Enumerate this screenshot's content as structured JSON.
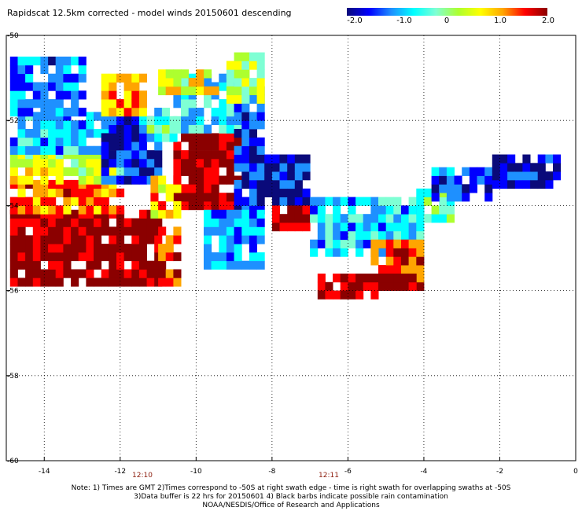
{
  "title": "Rapidscat 12.5km corrected - model winds 20150601 descending",
  "colorbar": {
    "ticks": [
      "-2.0",
      "-1.0",
      "0",
      "1.0",
      "2.0"
    ],
    "stops": [
      "#0a0a7a",
      "#0000ff",
      "#1e90ff",
      "#00ffff",
      "#7fffd4",
      "#adff2f",
      "#ffff00",
      "#ffa500",
      "#ff0000",
      "#8b0000"
    ]
  },
  "axes": {
    "x_ticks": [
      "-14",
      "-12",
      "-10",
      "-8",
      "-6",
      "-4",
      "-2",
      "0"
    ],
    "y_ticks": [
      "-50",
      "-52",
      "-54",
      "-56",
      "-58",
      "-60"
    ]
  },
  "time_labels": [
    "12:10",
    "12:11"
  ],
  "notes": [
    "Note: 1) Times are GMT 2)Times correspond to -50S at right swath edge - time is right swath for overlapping swaths at -50S",
    "3)Data buffer is 22 hrs for 20150601 4) Black barbs indicate possible rain contamination",
    "NOAA/NESDIS/Office of Research and Applications"
  ],
  "map_data": {
    "lon_range": [
      -15,
      0
    ],
    "lat_range": [
      -60,
      -50
    ],
    "regions": [
      {
        "lon": [
          -14.9,
          -11.0
        ],
        "lat": [
          -54.2,
          -55.9
        ],
        "v": 2.0
      },
      {
        "lon": [
          -11.0,
          -10.5
        ],
        "lat": [
          -54.5,
          -55.9
        ],
        "v": 1.5
      },
      {
        "lon": [
          -10.6,
          -9.0
        ],
        "lat": [
          -52.3,
          -54.1
        ],
        "v": 2.0
      },
      {
        "lon": [
          -14.9,
          -12.0
        ],
        "lat": [
          -53.5,
          -54.2
        ],
        "v": 1.2
      },
      {
        "lon": [
          -14.9,
          -11.5
        ],
        "lat": [
          -52.8,
          -53.5
        ],
        "v": 0.4
      },
      {
        "lon": [
          -14.9,
          -12.5
        ],
        "lat": [
          -51.9,
          -52.8
        ],
        "v": -0.8
      },
      {
        "lon": [
          -14.9,
          -13.0
        ],
        "lat": [
          -50.6,
          -51.9
        ],
        "v": -1.2
      },
      {
        "lon": [
          -12.5,
          -11.0
        ],
        "lat": [
          -52.0,
          -53.5
        ],
        "v": -1.6
      },
      {
        "lon": [
          -11.5,
          -10.6
        ],
        "lat": [
          -51.8,
          -52.5
        ],
        "v": -0.4
      },
      {
        "lon": [
          -10.6,
          -9.0
        ],
        "lat": [
          -51.0,
          -52.3
        ],
        "v": -0.6
      },
      {
        "lon": [
          -11.2,
          -10.5
        ],
        "lat": [
          -53.3,
          -54.3
        ],
        "v": 0.8
      },
      {
        "lon": [
          -9.0,
          -8.3
        ],
        "lat": [
          -51.2,
          -54.2
        ],
        "v": -1.5
      },
      {
        "lon": [
          -9.8,
          -8.4
        ],
        "lat": [
          -54.2,
          -55.5
        ],
        "v": -1.0
      },
      {
        "lon": [
          -8.2,
          -7.0
        ],
        "lat": [
          -52.8,
          -54.0
        ],
        "v": -1.8
      },
      {
        "lon": [
          -8.0,
          -7.0
        ],
        "lat": [
          -54.0,
          -54.6
        ],
        "v": 2.0
      },
      {
        "lon": [
          -7.0,
          -4.0
        ],
        "lat": [
          -53.9,
          -55.2
        ],
        "v": -0.8
      },
      {
        "lon": [
          -5.4,
          -4.0
        ],
        "lat": [
          -54.9,
          -56.0
        ],
        "v": 1.5
      },
      {
        "lon": [
          -6.8,
          -4.2
        ],
        "lat": [
          -55.6,
          -56.0
        ],
        "v": 2.0
      },
      {
        "lon": [
          -6.8,
          -5.3
        ],
        "lat": [
          -56.0,
          -56.2
        ],
        "v": 2.0
      },
      {
        "lon": [
          -4.2,
          -3.2
        ],
        "lat": [
          -53.6,
          -54.4
        ],
        "v": -0.2
      },
      {
        "lon": [
          -3.8,
          -2.2
        ],
        "lat": [
          -53.1,
          -53.9
        ],
        "v": -1.4
      },
      {
        "lon": [
          -2.2,
          -0.6
        ],
        "lat": [
          -52.9,
          -53.6
        ],
        "v": -1.8
      },
      {
        "lon": [
          -9.2,
          -8.4
        ],
        "lat": [
          -50.5,
          -51.6
        ],
        "v": 0.2
      },
      {
        "lon": [
          -11.0,
          -9.5
        ],
        "lat": [
          -50.8,
          -51.4
        ],
        "v": 0.6
      },
      {
        "lon": [
          -12.5,
          -11.5
        ],
        "lat": [
          -51.0,
          -51.9
        ],
        "v": 1.0
      }
    ]
  }
}
